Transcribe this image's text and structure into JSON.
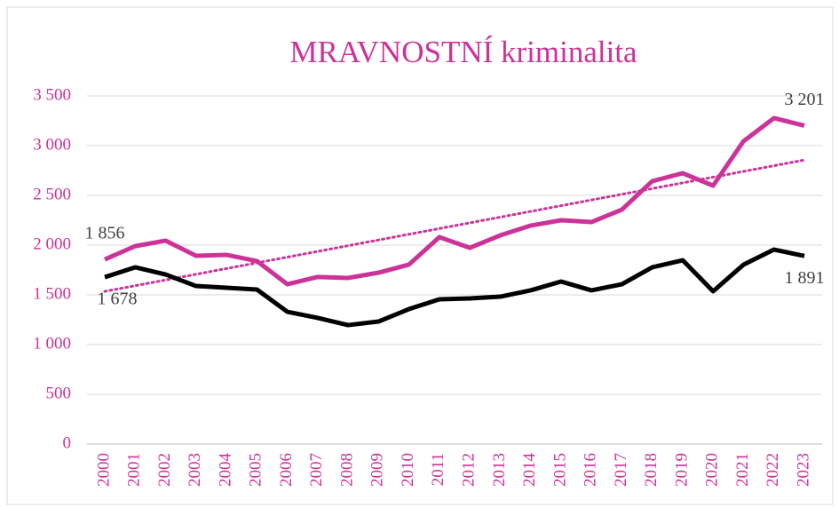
{
  "chart_data": {
    "type": "line",
    "title": "MRAVNOSTNÍ kriminalita",
    "categories": [
      "2000",
      "2001",
      "2002",
      "2003",
      "2004",
      "2005",
      "2006",
      "2007",
      "2008",
      "2009",
      "2010",
      "2011",
      "2012",
      "2013",
      "2014",
      "2015",
      "2016",
      "2017",
      "2018",
      "2019",
      "2020",
      "2021",
      "2022",
      "2023"
    ],
    "series": [
      {
        "color": "#cc3399",
        "trendline": true,
        "values": [
          1856,
          1990,
          2045,
          1893,
          1902,
          1840,
          1607,
          1680,
          1670,
          1723,
          1804,
          2080,
          1973,
          2098,
          2196,
          2250,
          2232,
          2357,
          2643,
          2723,
          2598,
          3045,
          3277,
          3201
        ],
        "value_labels": [
          "1 856",
          null,
          null,
          null,
          null,
          null,
          null,
          null,
          null,
          null,
          null,
          null,
          null,
          null,
          null,
          null,
          null,
          null,
          null,
          null,
          null,
          null,
          null,
          "3 201"
        ]
      },
      {
        "color": "#000000",
        "values": [
          1678,
          1777,
          1705,
          1589,
          1571,
          1554,
          1330,
          1268,
          1196,
          1232,
          1357,
          1455,
          1464,
          1482,
          1545,
          1634,
          1545,
          1607,
          1777,
          1848,
          1536,
          1804,
          1955,
          1891
        ],
        "value_labels": [
          "1 678",
          null,
          null,
          null,
          null,
          null,
          null,
          null,
          null,
          null,
          null,
          null,
          null,
          null,
          null,
          null,
          null,
          null,
          null,
          null,
          null,
          null,
          null,
          "1 891"
        ]
      }
    ],
    "ylim": [
      0,
      3500
    ],
    "yticks": [
      0,
      500,
      {
        "value": 1000,
        "label": "1 000"
      },
      {
        "value": 1500,
        "label": "1 500"
      },
      {
        "value": 2000,
        "label": "2 000"
      },
      {
        "value": 2500,
        "label": "2 500"
      },
      {
        "value": 3000,
        "label": "3 000"
      },
      {
        "value": 3500,
        "label": "3 500"
      }
    ],
    "grid": true
  }
}
